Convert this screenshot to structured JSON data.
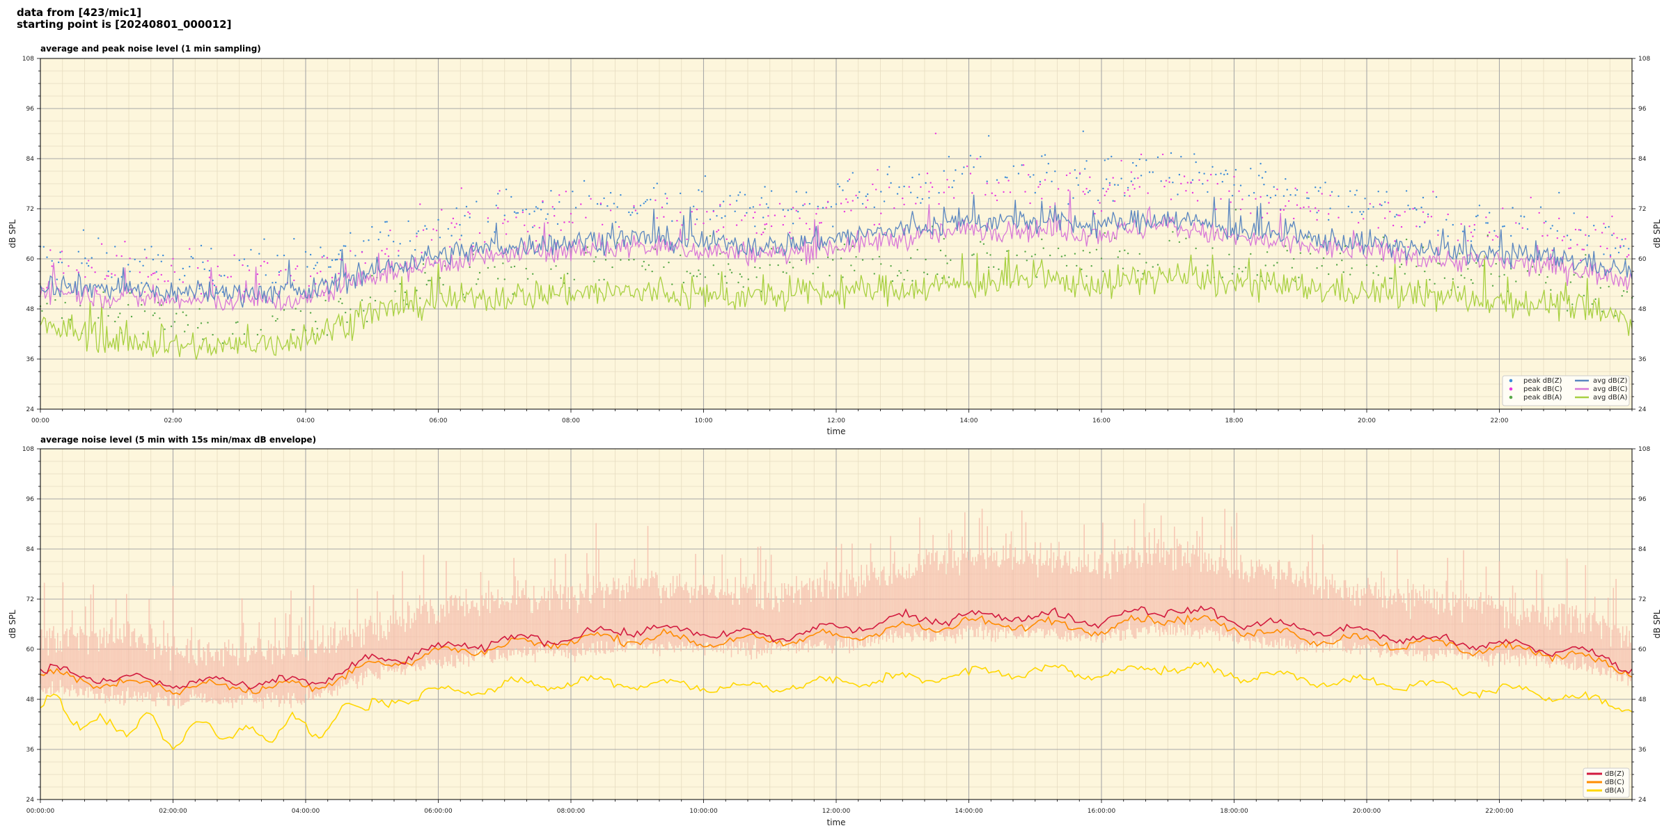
{
  "header": {
    "line1": "data from [423/mic1]",
    "line2": "starting point is [20240801_000012]"
  },
  "colors": {
    "plot_bg": "#fdf6dc",
    "grid_major": "#a8a8a8",
    "grid_minor": "#e6dcc0",
    "peak_z": "#3a8ad8",
    "peak_c": "#e838e0",
    "peak_a": "#58a848",
    "avg_z": "#5a86c0",
    "avg_c": "#d878d8",
    "avg_a": "#a8d040",
    "env_z": "#d21a3e",
    "env_c": "#ff8c00",
    "env_a": "#ffd700",
    "envelope_fill": "#f4b8a8"
  },
  "chart_data": [
    {
      "type": "line+scatter",
      "title": "average and peak noise level (1 min sampling)",
      "xlabel": "time",
      "ylabel": "dB SPL",
      "y_right_label": "dB SPL",
      "xlim": [
        0,
        1440
      ],
      "ylim": [
        24,
        108
      ],
      "yticks": [
        24,
        36,
        48,
        60,
        72,
        84,
        96,
        108
      ],
      "xticks": [
        0,
        120,
        240,
        360,
        480,
        600,
        720,
        840,
        960,
        1080,
        1200,
        1320
      ],
      "xtick_labels": [
        "00:00",
        "02:00",
        "04:00",
        "06:00",
        "08:00",
        "10:00",
        "12:00",
        "14:00",
        "16:00",
        "18:00",
        "20:00",
        "22:00"
      ],
      "grid": true,
      "legend_position": "bottom-right",
      "legend": [
        "peak dB(Z)",
        "peak dB(C)",
        "peak dB(A)",
        "avg dB(Z)",
        "avg dB(C)",
        "avg dB(A)"
      ],
      "x_hours": [
        0,
        1,
        2,
        3,
        4,
        5,
        6,
        7,
        8,
        9,
        10,
        11,
        12,
        13,
        14,
        15,
        16,
        17,
        18,
        19,
        20,
        21,
        22,
        23,
        24
      ],
      "series": [
        {
          "name": "avg dB(Z)",
          "kind": "line",
          "hourly": [
            54,
            53,
            52,
            52,
            52,
            57,
            61,
            63,
            64,
            65,
            64,
            63,
            65,
            67,
            69,
            69,
            68,
            70,
            67,
            65,
            64,
            62,
            61,
            60,
            57
          ]
        },
        {
          "name": "avg dB(C)",
          "kind": "line",
          "hourly": [
            53,
            51,
            50,
            50,
            50,
            56,
            59,
            61,
            62,
            63,
            62,
            61,
            63,
            65,
            67,
            67,
            66,
            68,
            65,
            63,
            62,
            60,
            59,
            58,
            55
          ]
        },
        {
          "name": "avg dB(A)",
          "kind": "line",
          "hourly": [
            44,
            41,
            39,
            39,
            41,
            47,
            50,
            51,
            52,
            52,
            51,
            51,
            52,
            53,
            54,
            55,
            54,
            56,
            54,
            53,
            52,
            51,
            50,
            49,
            45
          ]
        },
        {
          "name": "peak dB(Z)",
          "kind": "scatter",
          "hourly": [
            60,
            59,
            58,
            58,
            58,
            64,
            68,
            71,
            73,
            74,
            73,
            72,
            75,
            78,
            80,
            80,
            79,
            82,
            78,
            75,
            73,
            70,
            68,
            67,
            63
          ]
        },
        {
          "name": "peak dB(C)",
          "kind": "scatter",
          "hourly": [
            58,
            57,
            56,
            56,
            56,
            62,
            66,
            69,
            70,
            71,
            70,
            69,
            72,
            75,
            77,
            77,
            76,
            79,
            75,
            72,
            70,
            68,
            66,
            65,
            61
          ]
        },
        {
          "name": "peak dB(A)",
          "kind": "scatter",
          "hourly": [
            49,
            47,
            45,
            45,
            46,
            52,
            55,
            56,
            57,
            58,
            57,
            57,
            58,
            59,
            60,
            61,
            60,
            62,
            60,
            59,
            58,
            57,
            56,
            55,
            50
          ]
        }
      ]
    },
    {
      "type": "line+area",
      "title": "average noise level (5 min with 15s min/max dB envelope)",
      "xlabel": "time",
      "ylabel": "dB SPL",
      "y_right_label": "dB SPL",
      "xlim": [
        0,
        1440
      ],
      "ylim": [
        24,
        108
      ],
      "yticks": [
        24,
        36,
        48,
        60,
        72,
        84,
        96,
        108
      ],
      "xticks": [
        0,
        120,
        240,
        360,
        480,
        600,
        720,
        840,
        960,
        1080,
        1200,
        1320
      ],
      "xtick_labels": [
        "00:00:00",
        "02:00:00",
        "04:00:00",
        "06:00:00",
        "08:00:00",
        "10:00:00",
        "12:00:00",
        "14:00:00",
        "16:00:00",
        "18:00:00",
        "20:00:00",
        "22:00:00"
      ],
      "grid": true,
      "legend_position": "bottom-right",
      "legend": [
        "dB(Z)",
        "dB(C)",
        "dB(A)"
      ],
      "x_hours": [
        0,
        1,
        2,
        3,
        4,
        5,
        6,
        7,
        8,
        9,
        10,
        11,
        12,
        13,
        14,
        15,
        16,
        17,
        18,
        19,
        20,
        21,
        22,
        23,
        24
      ],
      "series": [
        {
          "name": "dB(Z)",
          "kind": "line",
          "hourly": [
            55,
            53,
            52,
            52,
            52,
            57,
            60,
            62,
            63,
            65,
            64,
            63,
            65,
            67,
            68,
            68,
            67,
            70,
            67,
            65,
            64,
            62,
            61,
            60,
            56
          ]
        },
        {
          "name": "dB(C)",
          "kind": "line",
          "hourly": [
            54,
            52,
            51,
            51,
            51,
            56,
            59,
            61,
            62,
            63,
            62,
            62,
            63,
            65,
            66,
            66,
            65,
            68,
            65,
            63,
            62,
            61,
            60,
            59,
            55
          ]
        },
        {
          "name": "dB(A)",
          "kind": "line",
          "hourly": [
            46,
            42,
            40,
            40,
            41,
            47,
            50,
            51,
            52,
            52,
            51,
            51,
            52,
            53,
            54,
            55,
            54,
            56,
            54,
            53,
            52,
            51,
            50,
            49,
            46
          ]
        }
      ],
      "envelope": {
        "upper_hourly": [
          62,
          64,
          60,
          59,
          60,
          65,
          70,
          72,
          73,
          76,
          74,
          73,
          76,
          79,
          82,
          82,
          80,
          84,
          80,
          77,
          74,
          72,
          70,
          68,
          64
        ],
        "lower_hourly": [
          51,
          49,
          48,
          48,
          48,
          54,
          57,
          59,
          60,
          61,
          60,
          60,
          61,
          63,
          64,
          64,
          63,
          65,
          63,
          61,
          60,
          59,
          58,
          57,
          53
        ]
      }
    }
  ]
}
